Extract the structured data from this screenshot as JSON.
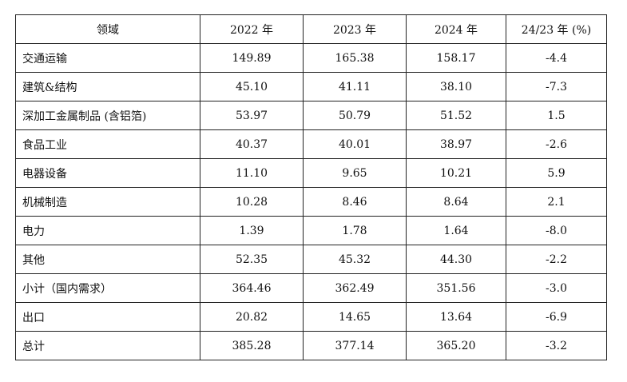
{
  "table": {
    "headers": [
      "领域",
      "2022 年",
      "2023 年",
      "2024 年",
      "24/23 年 (%)"
    ],
    "rows": [
      {
        "label": "交通运输",
        "y2022": "149.89",
        "y2023": "165.38",
        "y2024": "158.17",
        "change": "-4.4"
      },
      {
        "label": "建筑&结构",
        "y2022": "45.10",
        "y2023": "41.11",
        "y2024": "38.10",
        "change": "-7.3"
      },
      {
        "label": "深加工金属制品 (含铝箔)",
        "y2022": "53.97",
        "y2023": "50.79",
        "y2024": "51.52",
        "change": "1.5"
      },
      {
        "label": "食品工业",
        "y2022": "40.37",
        "y2023": "40.01",
        "y2024": "38.97",
        "change": "-2.6"
      },
      {
        "label": "电器设备",
        "y2022": "11.10",
        "y2023": "9.65",
        "y2024": "10.21",
        "change": "5.9"
      },
      {
        "label": "机械制造",
        "y2022": "10.28",
        "y2023": "8.46",
        "y2024": "8.64",
        "change": "2.1"
      },
      {
        "label": "电力",
        "y2022": "1.39",
        "y2023": "1.78",
        "y2024": "1.64",
        "change": "-8.0"
      },
      {
        "label": "其他",
        "y2022": "52.35",
        "y2023": "45.32",
        "y2024": "44.30",
        "change": "-2.2"
      },
      {
        "label": "小计（国内需求）",
        "y2022": "364.46",
        "y2023": "362.49",
        "y2024": "351.56",
        "change": "-3.0"
      },
      {
        "label": "出口",
        "y2022": "20.82",
        "y2023": "14.65",
        "y2024": "13.64",
        "change": "-6.9"
      },
      {
        "label": "总计",
        "y2022": "385.28",
        "y2023": "377.14",
        "y2024": "365.20",
        "change": "-3.2"
      }
    ]
  }
}
